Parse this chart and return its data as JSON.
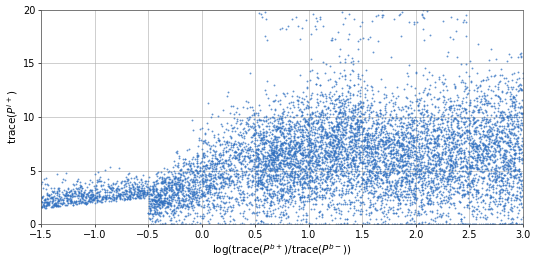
{
  "title": "",
  "xlim": [
    -1.5,
    3.0
  ],
  "ylim": [
    0,
    20
  ],
  "xticks": [
    -1.5,
    -1.0,
    -0.5,
    0.0,
    0.5,
    1.0,
    1.5,
    2.0,
    2.5,
    3.0
  ],
  "yticks": [
    0,
    5,
    10,
    15,
    20
  ],
  "dot_color": "#3070C0",
  "dot_size": 1.8,
  "n_points": 9000,
  "seed": 7,
  "background_color": "#ffffff",
  "grid_color": "#aaaaaa",
  "xlabel_display": "log(trace(P^{b+})/trace(P^{b-}))",
  "ylabel_display": "trace(P^{i+})"
}
